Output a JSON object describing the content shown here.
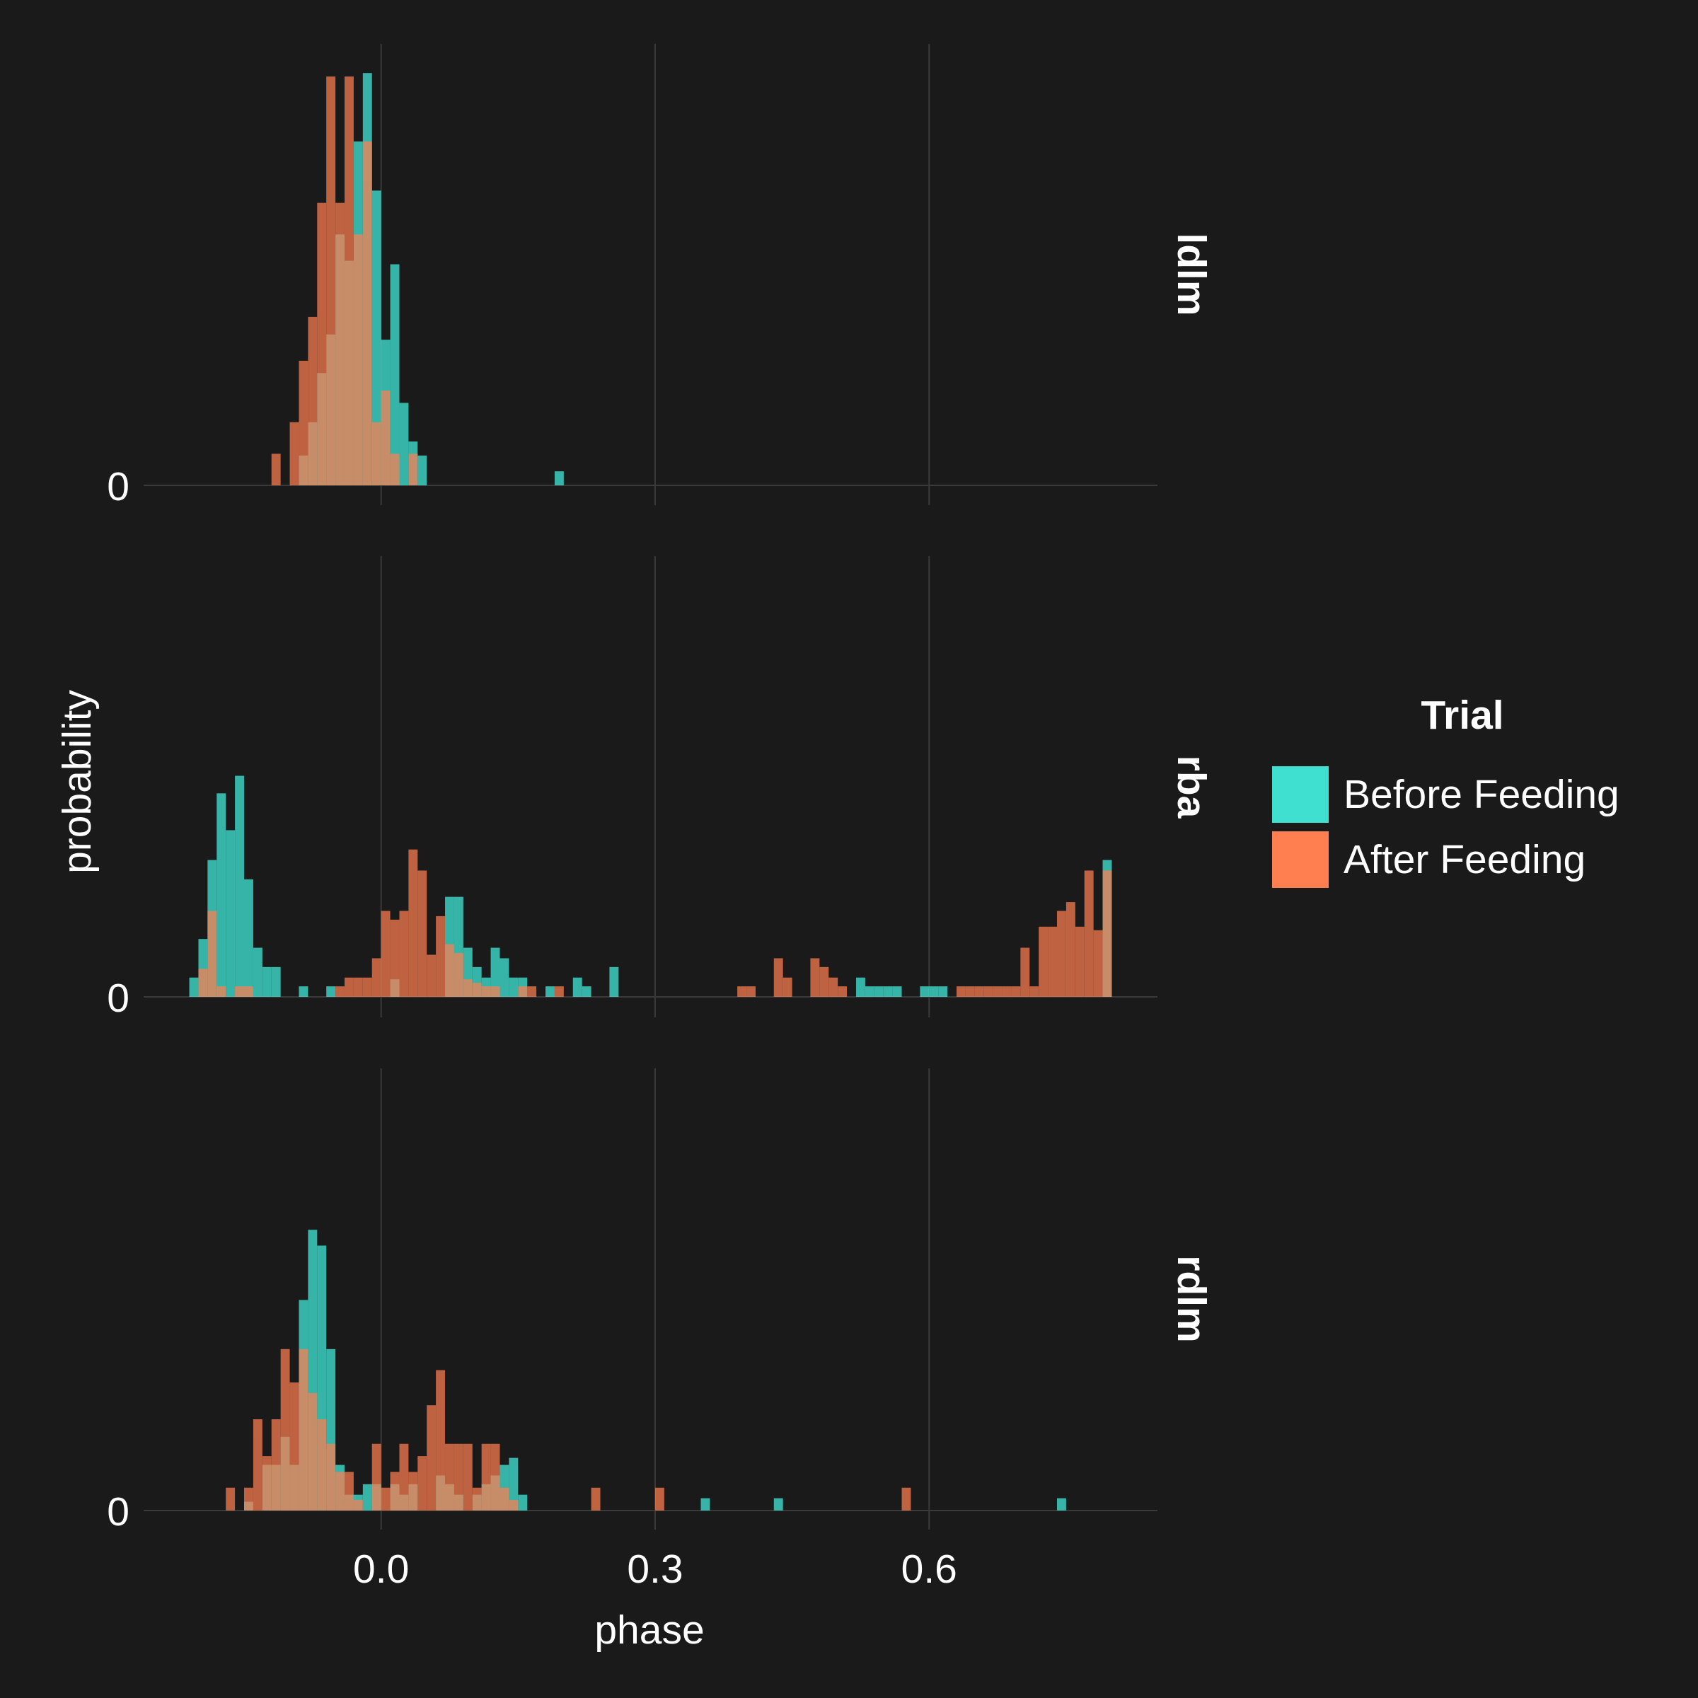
{
  "chart_data": {
    "type": "bar",
    "subtype": "faceted overlapping histograms",
    "xlabel": "phase",
    "ylabel": "probability",
    "xlim": [
      -0.26,
      0.85
    ],
    "x_ticks": [
      0.0,
      0.3,
      0.6
    ],
    "x_tick_labels": [
      "0.0",
      "0.3",
      "0.6"
    ],
    "y_tick_label": "0",
    "bin_width": 0.01,
    "grid": true,
    "background": "#1a1a1a",
    "legend": {
      "title": "Trial",
      "position": "right",
      "entries": [
        {
          "label": "Before Feeding",
          "color": "#40e0d0"
        },
        {
          "label": "After Feeding",
          "color": "#ff7f50"
        }
      ]
    },
    "facets": [
      {
        "label": "ldlm",
        "ylim": [
          0,
          0.25
        ],
        "series": [
          {
            "name": "Before Feeding",
            "color": "#40e0d0",
            "bins": [
              [
                -0.09,
                0.017
              ],
              [
                -0.08,
                0.036
              ],
              [
                -0.07,
                0.064
              ],
              [
                -0.06,
                0.086
              ],
              [
                -0.05,
                0.143
              ],
              [
                -0.04,
                0.128
              ],
              [
                -0.03,
                0.196
              ],
              [
                -0.02,
                0.235
              ],
              [
                -0.01,
                0.168
              ],
              [
                0.0,
                0.083
              ],
              [
                0.01,
                0.126
              ],
              [
                0.02,
                0.047
              ],
              [
                0.03,
                0.025
              ],
              [
                0.04,
                0.017
              ],
              [
                0.19,
                0.008
              ]
            ]
          },
          {
            "name": "After Feeding",
            "color": "#ff7f50",
            "bins": [
              [
                -0.12,
                0.018
              ],
              [
                -0.1,
                0.036
              ],
              [
                -0.09,
                0.071
              ],
              [
                -0.08,
                0.096
              ],
              [
                -0.07,
                0.161
              ],
              [
                -0.06,
                0.233
              ],
              [
                -0.05,
                0.161
              ],
              [
                -0.04,
                0.233
              ],
              [
                -0.03,
                0.143
              ],
              [
                -0.02,
                0.196
              ],
              [
                -0.01,
                0.036
              ],
              [
                0.0,
                0.054
              ],
              [
                0.01,
                0.018
              ],
              [
                0.03,
                0.018
              ]
            ]
          }
        ]
      },
      {
        "label": "rba",
        "ylim": [
          0,
          0.25
        ],
        "series": [
          {
            "name": "Before Feeding",
            "color": "#40e0d0",
            "bins": [
              [
                -0.21,
                0.011
              ],
              [
                -0.2,
                0.033
              ],
              [
                -0.19,
                0.078
              ],
              [
                -0.18,
                0.116
              ],
              [
                -0.17,
                0.095
              ],
              [
                -0.16,
                0.126
              ],
              [
                -0.15,
                0.067
              ],
              [
                -0.14,
                0.028
              ],
              [
                -0.13,
                0.017
              ],
              [
                -0.12,
                0.017
              ],
              [
                -0.09,
                0.006
              ],
              [
                -0.06,
                0.006
              ],
              [
                0.01,
                0.01
              ],
              [
                0.07,
                0.057
              ],
              [
                0.08,
                0.057
              ],
              [
                0.09,
                0.028
              ],
              [
                0.1,
                0.017
              ],
              [
                0.11,
                0.011
              ],
              [
                0.12,
                0.028
              ],
              [
                0.13,
                0.022
              ],
              [
                0.14,
                0.011
              ],
              [
                0.15,
                0.011
              ],
              [
                0.18,
                0.006
              ],
              [
                0.21,
                0.011
              ],
              [
                0.22,
                0.006
              ],
              [
                0.25,
                0.017
              ],
              [
                0.52,
                0.011
              ],
              [
                0.53,
                0.006
              ],
              [
                0.54,
                0.006
              ],
              [
                0.55,
                0.006
              ],
              [
                0.56,
                0.006
              ],
              [
                0.59,
                0.006
              ],
              [
                0.6,
                0.006
              ],
              [
                0.61,
                0.006
              ],
              [
                0.79,
                0.078
              ]
            ]
          },
          {
            "name": "After Feeding",
            "color": "#ff7f50",
            "bins": [
              [
                -0.2,
                0.016
              ],
              [
                -0.19,
                0.049
              ],
              [
                -0.18,
                0.006
              ],
              [
                -0.16,
                0.006
              ],
              [
                -0.15,
                0.006
              ],
              [
                -0.05,
                0.006
              ],
              [
                -0.04,
                0.011
              ],
              [
                -0.03,
                0.011
              ],
              [
                -0.02,
                0.011
              ],
              [
                -0.01,
                0.022
              ],
              [
                0.0,
                0.049
              ],
              [
                0.01,
                0.044
              ],
              [
                0.02,
                0.049
              ],
              [
                0.03,
                0.084
              ],
              [
                0.04,
                0.072
              ],
              [
                0.05,
                0.024
              ],
              [
                0.06,
                0.046
              ],
              [
                0.07,
                0.03
              ],
              [
                0.08,
                0.025
              ],
              [
                0.09,
                0.01
              ],
              [
                0.1,
                0.008
              ],
              [
                0.11,
                0.006
              ],
              [
                0.12,
                0.006
              ],
              [
                0.15,
                0.006
              ],
              [
                0.16,
                0.006
              ],
              [
                0.19,
                0.006
              ],
              [
                0.39,
                0.006
              ],
              [
                0.4,
                0.006
              ],
              [
                0.43,
                0.022
              ],
              [
                0.44,
                0.011
              ],
              [
                0.47,
                0.022
              ],
              [
                0.48,
                0.017
              ],
              [
                0.49,
                0.011
              ],
              [
                0.5,
                0.006
              ],
              [
                0.63,
                0.006
              ],
              [
                0.64,
                0.006
              ],
              [
                0.65,
                0.006
              ],
              [
                0.66,
                0.006
              ],
              [
                0.67,
                0.006
              ],
              [
                0.68,
                0.006
              ],
              [
                0.69,
                0.006
              ],
              [
                0.7,
                0.028
              ],
              [
                0.71,
                0.006
              ],
              [
                0.72,
                0.04
              ],
              [
                0.73,
                0.04
              ],
              [
                0.74,
                0.049
              ],
              [
                0.75,
                0.054
              ],
              [
                0.76,
                0.04
              ],
              [
                0.77,
                0.072
              ],
              [
                0.78,
                0.038
              ],
              [
                0.79,
                0.072
              ]
            ]
          }
        ]
      },
      {
        "label": "rdlm",
        "ylim": [
          0,
          0.25
        ],
        "series": [
          {
            "name": "Before Feeding",
            "color": "#40e0d0",
            "bins": [
              [
                -0.15,
                0.005
              ],
              [
                -0.13,
                0.026
              ],
              [
                -0.12,
                0.026
              ],
              [
                -0.11,
                0.042
              ],
              [
                -0.1,
                0.026
              ],
              [
                -0.09,
                0.12
              ],
              [
                -0.08,
                0.16
              ],
              [
                -0.07,
                0.151
              ],
              [
                -0.06,
                0.092
              ],
              [
                -0.05,
                0.026
              ],
              [
                -0.04,
                0.009
              ],
              [
                -0.03,
                0.009
              ],
              [
                -0.02,
                0.015
              ],
              [
                -0.01,
                0.015
              ],
              [
                0.01,
                0.015
              ],
              [
                0.02,
                0.009
              ],
              [
                0.03,
                0.015
              ],
              [
                0.06,
                0.02
              ],
              [
                0.07,
                0.015
              ],
              [
                0.08,
                0.009
              ],
              [
                0.1,
                0.009
              ],
              [
                0.11,
                0.015
              ],
              [
                0.12,
                0.02
              ],
              [
                0.13,
                0.026
              ],
              [
                0.14,
                0.03
              ],
              [
                0.15,
                0.009
              ],
              [
                0.35,
                0.007
              ],
              [
                0.43,
                0.007
              ],
              [
                0.74,
                0.007
              ]
            ]
          },
          {
            "name": "After Feeding",
            "color": "#ff7f50",
            "bins": [
              [
                -0.17,
                0.013
              ],
              [
                -0.15,
                0.013
              ],
              [
                -0.14,
                0.052
              ],
              [
                -0.13,
                0.031
              ],
              [
                -0.12,
                0.052
              ],
              [
                -0.11,
                0.092
              ],
              [
                -0.1,
                0.073
              ],
              [
                -0.09,
                0.092
              ],
              [
                -0.08,
                0.067
              ],
              [
                -0.07,
                0.052
              ],
              [
                -0.06,
                0.038
              ],
              [
                -0.05,
                0.022
              ],
              [
                -0.04,
                0.022
              ],
              [
                -0.03,
                0.006
              ],
              [
                -0.01,
                0.038
              ],
              [
                0.0,
                0.013
              ],
              [
                0.01,
                0.022
              ],
              [
                0.02,
                0.038
              ],
              [
                0.03,
                0.022
              ],
              [
                0.04,
                0.031
              ],
              [
                0.05,
                0.06
              ],
              [
                0.06,
                0.08
              ],
              [
                0.07,
                0.038
              ],
              [
                0.08,
                0.038
              ],
              [
                0.09,
                0.038
              ],
              [
                0.1,
                0.013
              ],
              [
                0.11,
                0.038
              ],
              [
                0.12,
                0.038
              ],
              [
                0.13,
                0.013
              ],
              [
                0.14,
                0.006
              ],
              [
                0.23,
                0.013
              ],
              [
                0.3,
                0.013
              ],
              [
                0.57,
                0.013
              ]
            ]
          }
        ]
      }
    ]
  }
}
